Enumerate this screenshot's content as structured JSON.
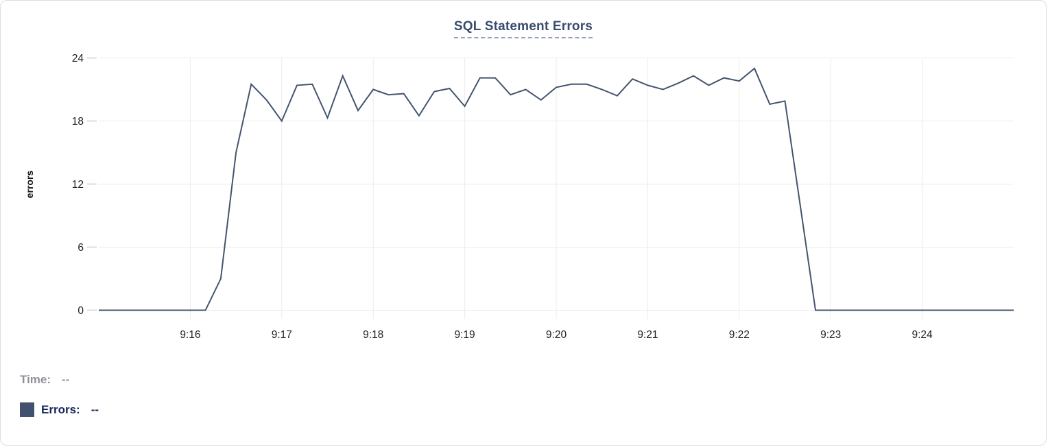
{
  "legend": {
    "time_label": "Time:",
    "time_value": "--",
    "errors_label": "Errors:",
    "errors_value": "--"
  },
  "colors": {
    "line": "#44546E",
    "swatch": "#42526E",
    "title_text": "#3A4C6E",
    "title_underline": "#93A3BE",
    "axis_text": "#222222",
    "grid": "#EBEBEB",
    "tick": "#DDDDDD",
    "legend_time": "#8D9197",
    "legend_errors": "#15235B",
    "card_border": "#DBDEE3"
  },
  "chart_data": {
    "type": "line",
    "title": "SQL Statement Errors",
    "xlabel": "",
    "ylabel": "errors",
    "ylim": [
      0,
      24
    ],
    "y_ticks": [
      0,
      6,
      12,
      18,
      24
    ],
    "x_ticks": [
      "9:16",
      "9:17",
      "9:18",
      "9:19",
      "9:20",
      "9:21",
      "9:22",
      "9:23",
      "9:24"
    ],
    "x_range": [
      "9:15:00",
      "9:25:00"
    ],
    "interval_seconds": 10,
    "grid": true,
    "legend_position": "bottom-left",
    "series": [
      {
        "name": "Errors",
        "points": [
          [
            "9:15:00",
            0
          ],
          [
            "9:15:10",
            0
          ],
          [
            "9:15:20",
            0
          ],
          [
            "9:15:30",
            0
          ],
          [
            "9:15:40",
            0
          ],
          [
            "9:15:50",
            0
          ],
          [
            "9:16:00",
            0
          ],
          [
            "9:16:10",
            0
          ],
          [
            "9:16:20",
            3
          ],
          [
            "9:16:30",
            15
          ],
          [
            "9:16:40",
            21.5
          ],
          [
            "9:16:50",
            20
          ],
          [
            "9:17:00",
            18
          ],
          [
            "9:17:10",
            21.4
          ],
          [
            "9:17:20",
            21.5
          ],
          [
            "9:17:30",
            18.3
          ],
          [
            "9:17:40",
            22.3
          ],
          [
            "9:17:50",
            19
          ],
          [
            "9:18:00",
            21
          ],
          [
            "9:18:10",
            20.5
          ],
          [
            "9:18:20",
            20.6
          ],
          [
            "9:18:30",
            18.5
          ],
          [
            "9:18:40",
            20.8
          ],
          [
            "9:18:50",
            21.1
          ],
          [
            "9:19:00",
            19.4
          ],
          [
            "9:19:10",
            22.1
          ],
          [
            "9:19:20",
            22.1
          ],
          [
            "9:19:30",
            20.5
          ],
          [
            "9:19:40",
            21
          ],
          [
            "9:19:50",
            20
          ],
          [
            "9:20:00",
            21.2
          ],
          [
            "9:20:10",
            21.5
          ],
          [
            "9:20:20",
            21.5
          ],
          [
            "9:20:30",
            21
          ],
          [
            "9:20:40",
            20.4
          ],
          [
            "9:20:50",
            22
          ],
          [
            "9:21:00",
            21.4
          ],
          [
            "9:21:10",
            21
          ],
          [
            "9:21:20",
            21.6
          ],
          [
            "9:21:30",
            22.3
          ],
          [
            "9:21:40",
            21.4
          ],
          [
            "9:21:50",
            22.1
          ],
          [
            "9:22:00",
            21.8
          ],
          [
            "9:22:10",
            23
          ],
          [
            "9:22:20",
            19.6
          ],
          [
            "9:22:30",
            19.9
          ],
          [
            "9:22:40",
            10
          ],
          [
            "9:22:50",
            0
          ],
          [
            "9:23:00",
            0
          ],
          [
            "9:23:10",
            0
          ],
          [
            "9:23:20",
            0
          ],
          [
            "9:23:30",
            0
          ],
          [
            "9:23:40",
            0
          ],
          [
            "9:23:50",
            0
          ],
          [
            "9:24:00",
            0
          ],
          [
            "9:24:10",
            0
          ],
          [
            "9:24:20",
            0
          ],
          [
            "9:24:30",
            0
          ],
          [
            "9:24:40",
            0
          ],
          [
            "9:24:50",
            0
          ],
          [
            "9:25:00",
            0
          ]
        ]
      }
    ]
  }
}
